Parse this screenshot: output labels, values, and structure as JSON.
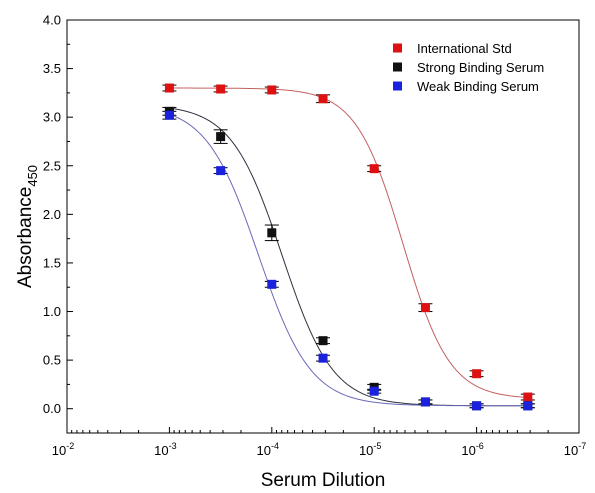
{
  "chart_data": {
    "type": "scatter",
    "xlabel": "Serum Dilution",
    "ylabel": "Absorbance",
    "ylabel_subscript": "450",
    "x_scale": "log-reversed",
    "xlim": [
      0.01,
      1e-07
    ],
    "ylim": [
      -0.25,
      4.0
    ],
    "x_ticks": [
      {
        "value": 0.01,
        "base": "10",
        "exp": "-2"
      },
      {
        "value": 0.001,
        "base": "10",
        "exp": "-3"
      },
      {
        "value": 0.0001,
        "base": "10",
        "exp": "-4"
      },
      {
        "value": 1e-05,
        "base": "10",
        "exp": "-5"
      },
      {
        "value": 1e-06,
        "base": "10",
        "exp": "-6"
      },
      {
        "value": 1e-07,
        "base": "10",
        "exp": "-7"
      }
    ],
    "y_ticks": [
      {
        "value": 0.0,
        "label": "0.0"
      },
      {
        "value": 0.5,
        "label": "0.5"
      },
      {
        "value": 1.0,
        "label": "1.0"
      },
      {
        "value": 1.5,
        "label": "1.5"
      },
      {
        "value": 2.0,
        "label": "2.0"
      },
      {
        "value": 2.5,
        "label": "2.5"
      },
      {
        "value": 3.0,
        "label": "3.0"
      },
      {
        "value": 3.5,
        "label": "3.5"
      },
      {
        "value": 4.0,
        "label": "4.0"
      }
    ],
    "grid": false,
    "legend_position": "top-right",
    "series": [
      {
        "name": "International Std",
        "color": "#dd1111",
        "fit_color": "#c46060",
        "x": [
          0.001,
          0.000316,
          0.0001,
          3.16e-05,
          1e-05,
          3.16e-06,
          1e-06,
          3.16e-07
        ],
        "y": [
          3.3,
          3.29,
          3.28,
          3.19,
          2.47,
          1.04,
          0.36,
          0.12
        ],
        "err": [
          0.03,
          0.03,
          0.03,
          0.04,
          0.03,
          0.04,
          0.03,
          0.03
        ],
        "fit": {
          "top": 3.3,
          "bottom": 0.1,
          "logEC50": -5.28,
          "slope": 1.9
        }
      },
      {
        "name": "Strong Binding Serum",
        "color": "#111111",
        "fit_color": "#303040",
        "x": [
          0.001,
          0.000316,
          0.0001,
          3.16e-05,
          1e-05,
          3.16e-06,
          1e-06,
          3.16e-07
        ],
        "y": [
          3.06,
          2.8,
          1.81,
          0.7,
          0.22,
          0.07,
          0.03,
          0.03
        ],
        "err": [
          0.04,
          0.07,
          0.08,
          0.03,
          0.03,
          0.02,
          0.02,
          0.02
        ],
        "fit": {
          "top": 3.13,
          "bottom": 0.03,
          "logEC50": -4.1,
          "slope": 1.75
        }
      },
      {
        "name": "Weak Binding Serum",
        "color": "#1a22dd",
        "fit_color": "#6a6ab8",
        "x": [
          0.001,
          0.000316,
          0.0001,
          3.16e-05,
          1e-05,
          3.16e-06,
          1e-06,
          3.16e-07
        ],
        "y": [
          3.02,
          2.45,
          1.28,
          0.52,
          0.18,
          0.07,
          0.03,
          0.03
        ],
        "err": [
          0.04,
          0.03,
          0.03,
          0.03,
          0.02,
          0.02,
          0.02,
          0.02
        ],
        "fit": {
          "top": 3.13,
          "bottom": 0.03,
          "logEC50": -3.87,
          "slope": 1.7
        }
      }
    ]
  }
}
